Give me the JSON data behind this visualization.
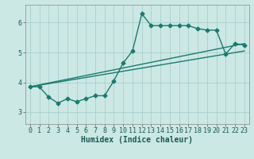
{
  "xlabel": "Humidex (Indice chaleur)",
  "bg_color": "#cce8e4",
  "line_color": "#1a7a6e",
  "grid_color": "#aacfcc",
  "xlim": [
    -0.5,
    23.5
  ],
  "ylim": [
    2.6,
    6.6
  ],
  "xticks": [
    0,
    1,
    2,
    3,
    4,
    5,
    6,
    7,
    8,
    9,
    10,
    11,
    12,
    13,
    14,
    15,
    16,
    17,
    18,
    19,
    20,
    21,
    22,
    23
  ],
  "yticks": [
    3,
    4,
    5,
    6
  ],
  "series1_x": [
    0,
    1,
    2,
    3,
    4,
    5,
    6,
    7,
    8,
    9,
    10,
    11,
    12,
    13,
    14,
    15,
    16,
    17,
    18,
    19,
    20,
    21,
    22,
    23
  ],
  "series1_y": [
    3.85,
    3.85,
    3.5,
    3.3,
    3.45,
    3.35,
    3.45,
    3.55,
    3.55,
    4.05,
    4.65,
    5.05,
    6.3,
    5.9,
    5.9,
    5.9,
    5.9,
    5.9,
    5.8,
    5.75,
    5.75,
    4.95,
    5.3,
    5.25
  ],
  "series2_x": [
    0,
    23
  ],
  "series2_y": [
    3.85,
    5.3
  ],
  "series3_x": [
    0,
    23
  ],
  "series3_y": [
    3.85,
    5.05
  ],
  "marker": "D",
  "markersize": 2.5,
  "linewidth": 1.0,
  "xlabel_fontsize": 7,
  "tick_fontsize": 6
}
